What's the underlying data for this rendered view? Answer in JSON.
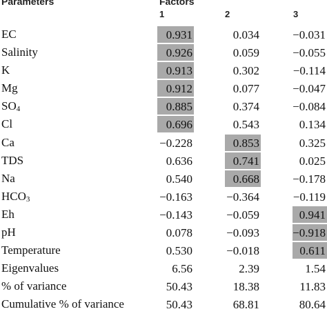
{
  "header": {
    "parameters_label": "Parameters",
    "factors_label": "Factors",
    "columns": [
      "1",
      "2",
      "3"
    ]
  },
  "rows": [
    {
      "label": "EC",
      "values": [
        "0.931",
        "0.034",
        "−0.031"
      ],
      "highlight": [
        true,
        false,
        false
      ]
    },
    {
      "label": "Salinity",
      "values": [
        "0.926",
        "0.059",
        "−0.055"
      ],
      "highlight": [
        true,
        false,
        false
      ]
    },
    {
      "label": "K",
      "values": [
        "0.913",
        "0.302",
        "−0.114"
      ],
      "highlight": [
        true,
        false,
        false
      ]
    },
    {
      "label": "Mg",
      "values": [
        "0.912",
        "0.077",
        "−0.047"
      ],
      "highlight": [
        true,
        false,
        false
      ]
    },
    {
      "label": "SO",
      "label_sub": "4",
      "values": [
        "0.885",
        "0.374",
        "−0.084"
      ],
      "highlight": [
        true,
        false,
        false
      ]
    },
    {
      "label": "Cl",
      "values": [
        "0.696",
        "0.543",
        "0.134"
      ],
      "highlight": [
        true,
        false,
        false
      ]
    },
    {
      "label": "Ca",
      "values": [
        "−0.228",
        "0.853",
        "0.325"
      ],
      "highlight": [
        false,
        true,
        false
      ]
    },
    {
      "label": "TDS",
      "values": [
        "0.636",
        "0.741",
        "0.025"
      ],
      "highlight": [
        false,
        true,
        false
      ]
    },
    {
      "label": "Na",
      "values": [
        "0.540",
        "0.668",
        "−0.178"
      ],
      "highlight": [
        false,
        true,
        false
      ]
    },
    {
      "label": "HCO",
      "label_sub": "3",
      "values": [
        "−0.163",
        "−0.364",
        "−0.119"
      ],
      "highlight": [
        false,
        false,
        false
      ]
    },
    {
      "label": "Eh",
      "values": [
        "−0.143",
        "−0.059",
        "0.941"
      ],
      "highlight": [
        false,
        false,
        true
      ]
    },
    {
      "label": "pH",
      "values": [
        "0.078",
        "−0.093",
        "−0.918"
      ],
      "highlight": [
        false,
        false,
        true
      ]
    },
    {
      "label": "Temperature",
      "values": [
        "0.530",
        "−0.018",
        "0.611"
      ],
      "highlight": [
        false,
        false,
        true
      ]
    },
    {
      "label": "Eigenvalues",
      "values": [
        "6.56",
        "2.39",
        "1.54"
      ],
      "highlight": [
        false,
        false,
        false
      ]
    },
    {
      "label": "% of variance",
      "values": [
        "50.43",
        "18.38",
        "11.83"
      ],
      "highlight": [
        false,
        false,
        false
      ]
    },
    {
      "label": "Cumulative % of variance",
      "values": [
        "50.43",
        "68.81",
        "80.64"
      ],
      "highlight": [
        false,
        false,
        false
      ]
    }
  ],
  "colors": {
    "highlight": "#a9a9a9",
    "text": "#111111",
    "background": "#ffffff"
  }
}
